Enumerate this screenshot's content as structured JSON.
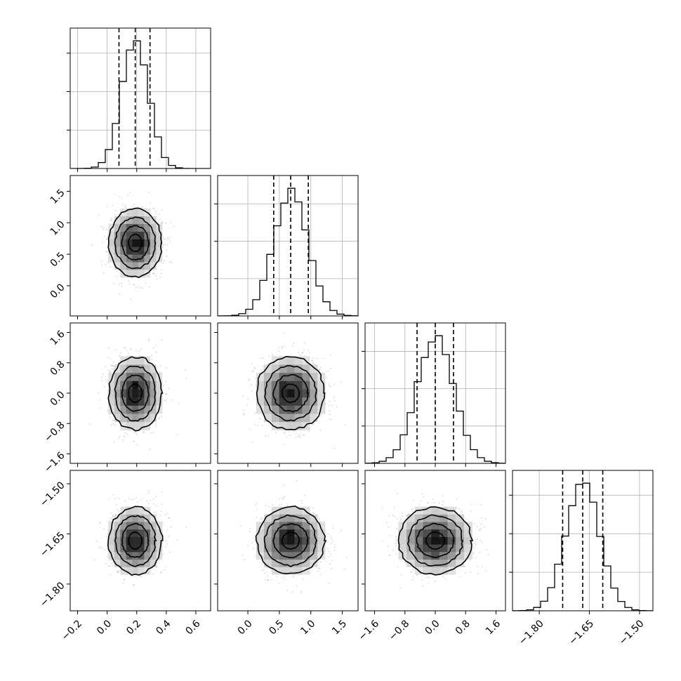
{
  "chart_data": {
    "type": "corner",
    "title": "",
    "parameters": [
      {
        "mean": 0.19,
        "sd": 0.09,
        "range": [
          -0.25,
          0.7
        ],
        "ticks": [
          -0.2,
          0.0,
          0.2,
          0.4,
          0.6
        ],
        "tick_labels": [
          "−0.2",
          "0.0",
          "0.2",
          "0.4",
          "0.6"
        ],
        "quantiles": [
          0.08,
          0.19,
          0.29
        ]
      },
      {
        "mean": 0.68,
        "sd": 0.27,
        "range": [
          -0.48,
          1.75
        ],
        "ticks": [
          0.0,
          0.5,
          1.0,
          1.5
        ],
        "tick_labels": [
          "0.0",
          "0.5",
          "1.0",
          "1.5"
        ],
        "quantiles": [
          0.41,
          0.68,
          0.96
        ]
      },
      {
        "mean": 0.0,
        "sd": 0.48,
        "range": [
          -1.85,
          1.85
        ],
        "ticks": [
          -1.6,
          -0.8,
          0.0,
          0.8,
          1.6
        ],
        "tick_labels": [
          "−1.6",
          "−0.8",
          "0.0",
          "0.8",
          "1.6"
        ],
        "quantiles": [
          -0.48,
          0.0,
          0.48
        ]
      },
      {
        "mean": -1.67,
        "sd": 0.05,
        "range": [
          -1.88,
          -1.46
        ],
        "ticks": [
          -1.8,
          -1.65,
          -1.5
        ],
        "tick_labels": [
          "−1.80",
          "−1.65",
          "−1.50"
        ],
        "quantiles": [
          -1.73,
          -1.67,
          -1.61
        ]
      }
    ],
    "histogram_bins": 20,
    "quantile_levels": [
      0.16,
      0.5,
      0.84
    ],
    "contour_levels_sigma": [
      0.5,
      1.0,
      1.5,
      2.0
    ],
    "grid": true,
    "colors": {
      "scatter": "#8a8a8a",
      "density_max": "#000000",
      "lines": "#000000"
    }
  }
}
